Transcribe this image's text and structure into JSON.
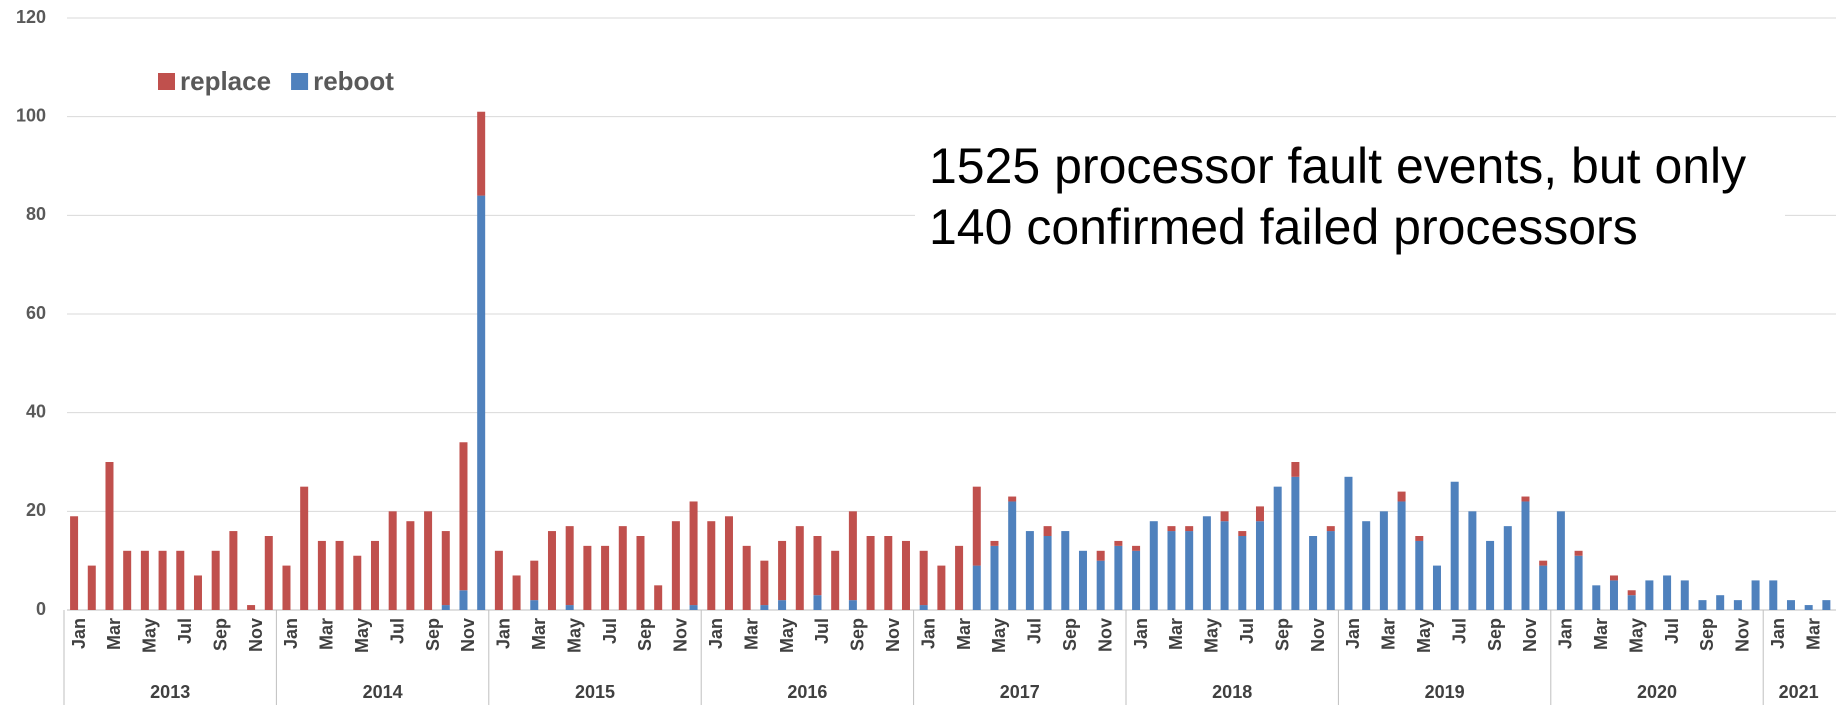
{
  "chart_data": {
    "type": "stacked_bar",
    "annotation_lines": [
      "1525 processor fault events, but only",
      "140 confirmed failed processors"
    ],
    "categories": [
      "Jan",
      null,
      "Mar",
      null,
      "May",
      null,
      "Jul",
      null,
      "Sep",
      null,
      "Nov",
      null,
      "Jan",
      null,
      "Mar",
      null,
      "May",
      null,
      "Jul",
      null,
      "Sep",
      null,
      "Nov",
      null,
      "Jan",
      null,
      "Mar",
      null,
      "May",
      null,
      "Jul",
      null,
      "Sep",
      null,
      "Nov",
      null,
      "Jan",
      null,
      "Mar",
      null,
      "May",
      null,
      "Jul",
      null,
      "Sep",
      null,
      "Nov",
      null,
      "Jan",
      null,
      "Mar",
      null,
      "May",
      null,
      "Jul",
      null,
      "Sep",
      null,
      "Nov",
      null,
      "Jan",
      null,
      "Mar",
      null,
      "May",
      null,
      "Jul",
      null,
      "Sep",
      null,
      "Nov",
      null,
      "Jan",
      null,
      "Mar",
      null,
      "May",
      null,
      "Jul",
      null,
      "Sep",
      null,
      "Nov",
      null,
      "Jan",
      null,
      "Mar",
      null,
      "May",
      null,
      "Jul",
      null,
      "Sep",
      null,
      "Nov",
      null,
      "Jan",
      null,
      "Mar",
      null
    ],
    "year_labels": [
      "2013",
      "2014",
      "2015",
      "2016",
      "2017",
      "2018",
      "2019",
      "2020",
      "2021"
    ],
    "series": [
      {
        "name": "reboot",
        "color": "#4f81bd",
        "values": [
          0,
          0,
          0,
          0,
          0,
          0,
          0,
          0,
          0,
          0,
          0,
          0,
          0,
          0,
          0,
          0,
          0,
          0,
          0,
          0,
          0,
          1,
          4,
          84,
          0,
          0,
          2,
          0,
          1,
          0,
          0,
          0,
          0,
          0,
          0,
          1,
          0,
          0,
          0,
          1,
          2,
          0,
          3,
          0,
          2,
          0,
          0,
          0,
          1,
          0,
          0,
          9,
          13,
          22,
          16,
          15,
          16,
          12,
          10,
          13,
          12,
          18,
          16,
          16,
          19,
          18,
          15,
          18,
          25,
          27,
          15,
          16,
          27,
          18,
          20,
          22,
          14,
          9,
          26,
          20,
          14,
          17,
          22,
          9,
          20,
          11,
          5,
          6,
          3,
          6,
          7,
          6,
          2,
          3,
          2,
          6,
          6,
          2,
          1,
          2
        ]
      },
      {
        "name": "replace",
        "color": "#c0504d",
        "values": [
          19,
          9,
          30,
          12,
          12,
          12,
          12,
          7,
          12,
          16,
          1,
          15,
          9,
          25,
          14,
          14,
          11,
          14,
          20,
          18,
          20,
          15,
          30,
          17,
          12,
          7,
          8,
          16,
          16,
          13,
          13,
          17,
          15,
          5,
          18,
          21,
          18,
          19,
          13,
          9,
          12,
          17,
          12,
          12,
          18,
          15,
          15,
          14,
          11,
          9,
          13,
          16,
          1,
          1,
          0,
          2,
          0,
          0,
          2,
          1,
          1,
          0,
          1,
          1,
          0,
          2,
          1,
          3,
          0,
          3,
          0,
          1,
          0,
          0,
          0,
          2,
          1,
          0,
          0,
          0,
          0,
          0,
          1,
          1,
          0,
          1,
          0,
          1,
          1,
          0,
          0,
          0,
          0,
          0,
          0,
          0,
          0,
          0,
          0,
          0
        ]
      }
    ],
    "legend_order": [
      1,
      0
    ],
    "ylim": [
      0,
      120
    ],
    "yticks": [
      0,
      20,
      40,
      60,
      80,
      100,
      120
    ],
    "grid": true
  }
}
